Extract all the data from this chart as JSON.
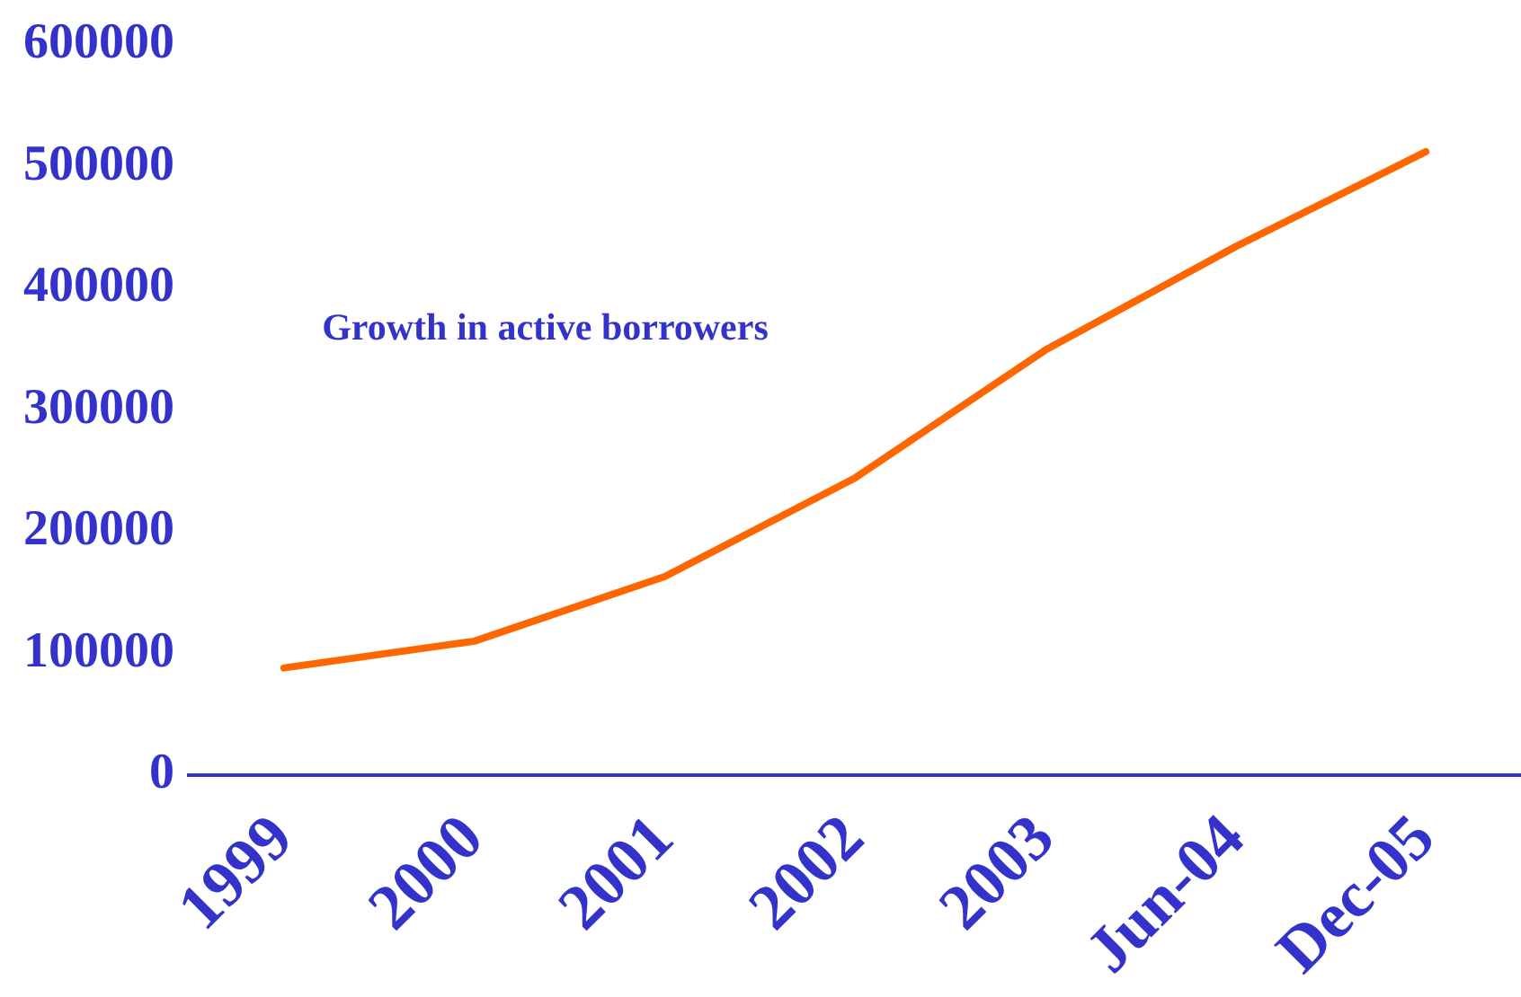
{
  "chart_data": {
    "type": "line",
    "categories": [
      "1999",
      "2000",
      "2001",
      "2002",
      "2003",
      "Jun-04",
      "Dec-05"
    ],
    "series": [
      {
        "color": "#ff6600",
        "values": [
          88000,
          110000,
          163000,
          244000,
          349000,
          434000,
          512000
        ]
      }
    ],
    "ylim": [
      0,
      600000
    ],
    "yticks": [
      0,
      100000,
      200000,
      300000,
      400000,
      500000,
      600000
    ],
    "annotations": [
      "Growth in active borrowers"
    ],
    "grid": false,
    "legend": false,
    "marker": "none"
  }
}
